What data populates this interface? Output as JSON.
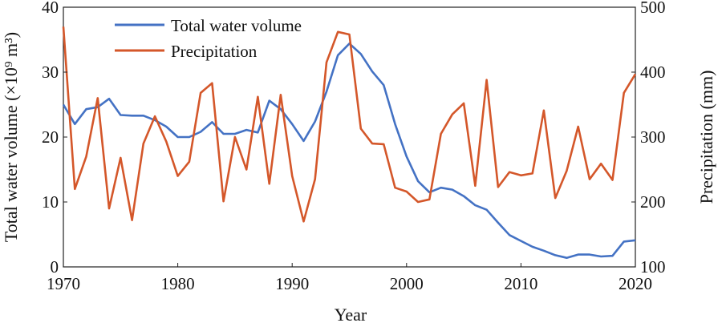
{
  "chart_data": {
    "type": "line",
    "title": "",
    "xlabel": "Year",
    "ylabel": "Total water volume (×10⁹ m³)",
    "y2label": "Precipitation (mm)",
    "xlim": [
      1970,
      2020
    ],
    "ylim": [
      0,
      40
    ],
    "y2lim": [
      100,
      500
    ],
    "xticks": [
      1970,
      1980,
      1990,
      2000,
      2010,
      2020
    ],
    "yticks": [
      0,
      10,
      20,
      30,
      40
    ],
    "y2ticks": [
      100,
      200,
      300,
      400,
      500
    ],
    "grid": false,
    "legend": "top-left",
    "series": [
      {
        "name": "Total water volume",
        "axis": "left",
        "color": "#4472c4",
        "points": [
          [
            1970,
            25.0
          ],
          [
            1971,
            22.0
          ],
          [
            1972,
            24.3
          ],
          [
            1973,
            24.6
          ],
          [
            1974,
            25.9
          ],
          [
            1975,
            23.4
          ],
          [
            1976,
            23.3
          ],
          [
            1977,
            23.3
          ],
          [
            1978,
            22.6
          ],
          [
            1979,
            21.6
          ],
          [
            1980,
            20.0
          ],
          [
            1981,
            20.0
          ],
          [
            1982,
            20.8
          ],
          [
            1983,
            22.3
          ],
          [
            1984,
            20.5
          ],
          [
            1985,
            20.5
          ],
          [
            1986,
            21.1
          ],
          [
            1987,
            20.7
          ],
          [
            1988,
            25.6
          ],
          [
            1989,
            24.3
          ],
          [
            1990,
            22.0
          ],
          [
            1991,
            19.4
          ],
          [
            1992,
            22.4
          ],
          [
            1993,
            27.0
          ],
          [
            1994,
            32.6
          ],
          [
            1995,
            34.4
          ],
          [
            1996,
            32.8
          ],
          [
            1997,
            30.1
          ],
          [
            1998,
            28.0
          ],
          [
            1999,
            22.0
          ],
          [
            2000,
            17.0
          ],
          [
            2001,
            13.2
          ],
          [
            2002,
            11.5
          ],
          [
            2003,
            12.2
          ],
          [
            2004,
            11.9
          ],
          [
            2005,
            10.9
          ],
          [
            2006,
            9.5
          ],
          [
            2007,
            8.8
          ],
          [
            2008,
            6.8
          ],
          [
            2009,
            4.9
          ],
          [
            2010,
            4.0
          ],
          [
            2011,
            3.1
          ],
          [
            2012,
            2.5
          ],
          [
            2013,
            1.8
          ],
          [
            2014,
            1.4
          ],
          [
            2015,
            1.9
          ],
          [
            2016,
            1.9
          ],
          [
            2017,
            1.6
          ],
          [
            2018,
            1.7
          ],
          [
            2019,
            3.9
          ],
          [
            2020,
            4.1
          ]
        ]
      },
      {
        "name": "Precipitation",
        "axis": "right",
        "color": "#d4572a",
        "points": [
          [
            1970,
            470
          ],
          [
            1971,
            220
          ],
          [
            1972,
            270
          ],
          [
            1973,
            360
          ],
          [
            1974,
            190
          ],
          [
            1975,
            268
          ],
          [
            1976,
            172
          ],
          [
            1977,
            290
          ],
          [
            1978,
            332
          ],
          [
            1979,
            293
          ],
          [
            1980,
            240
          ],
          [
            1981,
            262
          ],
          [
            1982,
            368
          ],
          [
            1983,
            383
          ],
          [
            1984,
            201
          ],
          [
            1985,
            300
          ],
          [
            1986,
            250
          ],
          [
            1987,
            362
          ],
          [
            1988,
            228
          ],
          [
            1989,
            365
          ],
          [
            1990,
            240
          ],
          [
            1991,
            170
          ],
          [
            1992,
            235
          ],
          [
            1993,
            415
          ],
          [
            1994,
            462
          ],
          [
            1995,
            458
          ],
          [
            1996,
            313
          ],
          [
            1997,
            290
          ],
          [
            1998,
            289
          ],
          [
            1999,
            222
          ],
          [
            2000,
            216
          ],
          [
            2001,
            200
          ],
          [
            2002,
            204
          ],
          [
            2003,
            305
          ],
          [
            2004,
            335
          ],
          [
            2005,
            352
          ],
          [
            2006,
            225
          ],
          [
            2007,
            388
          ],
          [
            2008,
            223
          ],
          [
            2009,
            246
          ],
          [
            2010,
            241
          ],
          [
            2011,
            244
          ],
          [
            2012,
            341
          ],
          [
            2013,
            206
          ],
          [
            2014,
            248
          ],
          [
            2015,
            316
          ],
          [
            2016,
            235
          ],
          [
            2017,
            259
          ],
          [
            2018,
            234
          ],
          [
            2019,
            368
          ],
          [
            2020,
            397
          ]
        ]
      }
    ]
  }
}
